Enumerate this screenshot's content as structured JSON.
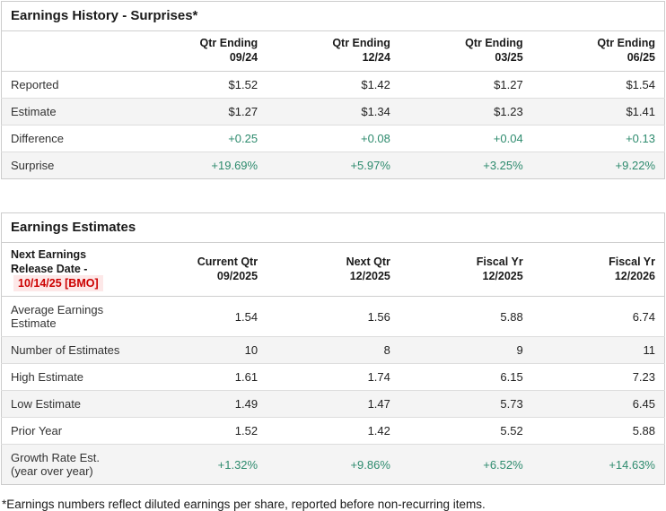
{
  "colors": {
    "positive_green": "#2e8b6e",
    "alert_red": "#cc0000",
    "alert_red_background": "#fde8e8",
    "row_stripe": "#f4f4f4",
    "table_border": "#cccccc"
  },
  "earnings_history": {
    "title": "Earnings History - Surprises*",
    "columns": [
      {
        "line1": "Qtr Ending",
        "line2": "09/24"
      },
      {
        "line1": "Qtr Ending",
        "line2": "12/24"
      },
      {
        "line1": "Qtr Ending",
        "line2": "03/25"
      },
      {
        "line1": "Qtr Ending",
        "line2": "06/25"
      }
    ],
    "rows": [
      {
        "label": "Reported",
        "values": [
          "$1.52",
          "$1.42",
          "$1.27",
          "$1.54"
        ],
        "green": false
      },
      {
        "label": "Estimate",
        "values": [
          "$1.27",
          "$1.34",
          "$1.23",
          "$1.41"
        ],
        "green": false
      },
      {
        "label": "Difference",
        "values": [
          "+0.25",
          "+0.08",
          "+0.04",
          "+0.13"
        ],
        "green": true
      },
      {
        "label": "Surprise",
        "values": [
          "+19.69%",
          "+5.97%",
          "+3.25%",
          "+9.22%"
        ],
        "green": true
      }
    ]
  },
  "earnings_estimates": {
    "title": "Earnings Estimates",
    "release_label": "Next Earnings Release Date - ",
    "release_date": "10/14/25 [BMO]",
    "columns": [
      {
        "line1": "Current Qtr",
        "line2": "09/2025"
      },
      {
        "line1": "Next Qtr",
        "line2": "12/2025"
      },
      {
        "line1": "Fiscal Yr",
        "line2": "12/2025"
      },
      {
        "line1": "Fiscal Yr",
        "line2": "12/2026"
      }
    ],
    "rows": [
      {
        "label": "Average Earnings Estimate",
        "values": [
          "1.54",
          "1.56",
          "5.88",
          "6.74"
        ],
        "green": false
      },
      {
        "label": "Number of Estimates",
        "values": [
          "10",
          "8",
          "9",
          "11"
        ],
        "green": false
      },
      {
        "label": "High Estimate",
        "values": [
          "1.61",
          "1.74",
          "6.15",
          "7.23"
        ],
        "green": false
      },
      {
        "label": "Low Estimate",
        "values": [
          "1.49",
          "1.47",
          "5.73",
          "6.45"
        ],
        "green": false
      },
      {
        "label": "Prior Year",
        "values": [
          "1.52",
          "1.42",
          "5.52",
          "5.88"
        ],
        "green": false
      },
      {
        "label": "Growth Rate Est. (year over year)",
        "values": [
          "+1.32%",
          "+9.86%",
          "+6.52%",
          "+14.63%"
        ],
        "green": true
      }
    ]
  },
  "footnote": "*Earnings numbers reflect diluted earnings per share, reported before non-recurring items."
}
